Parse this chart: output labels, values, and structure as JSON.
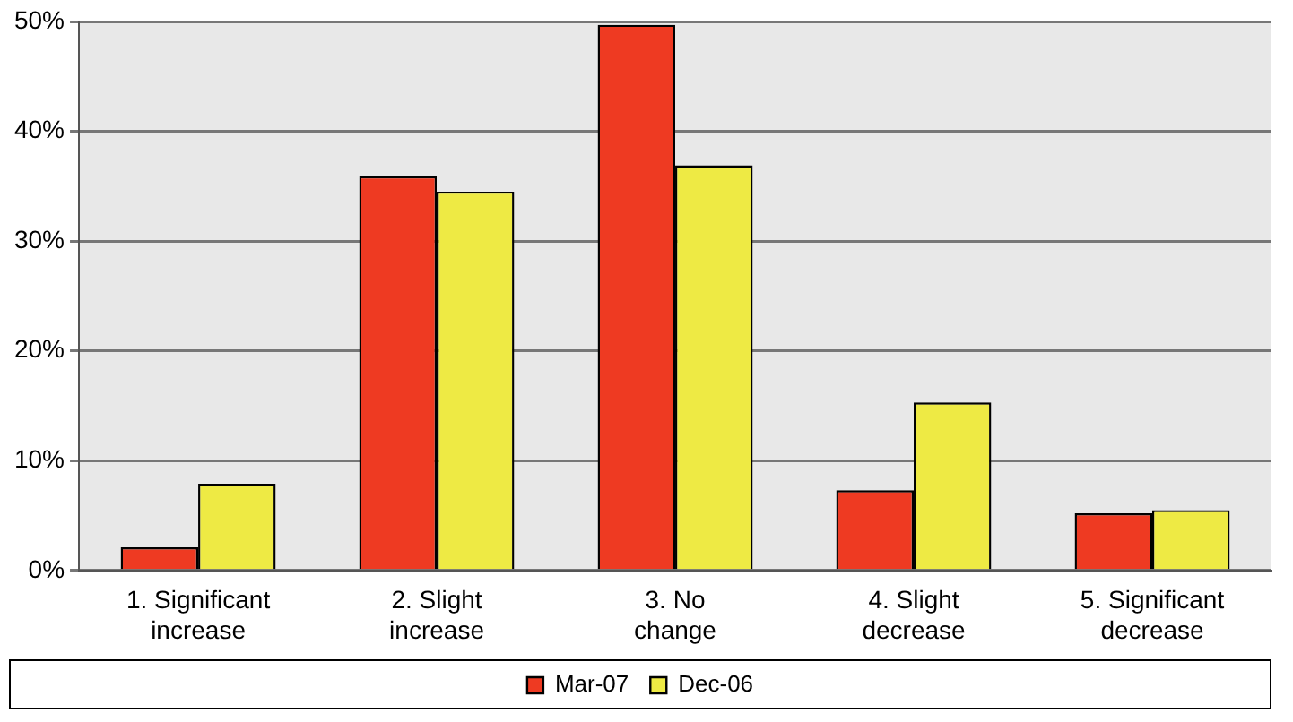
{
  "chart_data": {
    "type": "bar",
    "categories": [
      "1. Significant increase",
      "2. Slight increase",
      "3. No change",
      "4. Slight decrease",
      "5. Significant decrease"
    ],
    "series": [
      {
        "name": "Mar-07",
        "color": "#ee3a22",
        "values": [
          2.1,
          35.9,
          49.7,
          7.3,
          5.2
        ]
      },
      {
        "name": "Dec-06",
        "color": "#eeea44",
        "values": [
          7.9,
          34.5,
          36.9,
          15.3,
          5.5
        ]
      }
    ],
    "ylim": [
      0,
      50
    ],
    "yticks": [
      {
        "value": 0,
        "label": "0%"
      },
      {
        "value": 10,
        "label": "10%"
      },
      {
        "value": 20,
        "label": "20%"
      },
      {
        "value": 30,
        "label": "30%"
      },
      {
        "value": 40,
        "label": "40%"
      },
      {
        "value": 50,
        "label": "50%"
      }
    ],
    "grid": "y",
    "legend": "bottom"
  }
}
